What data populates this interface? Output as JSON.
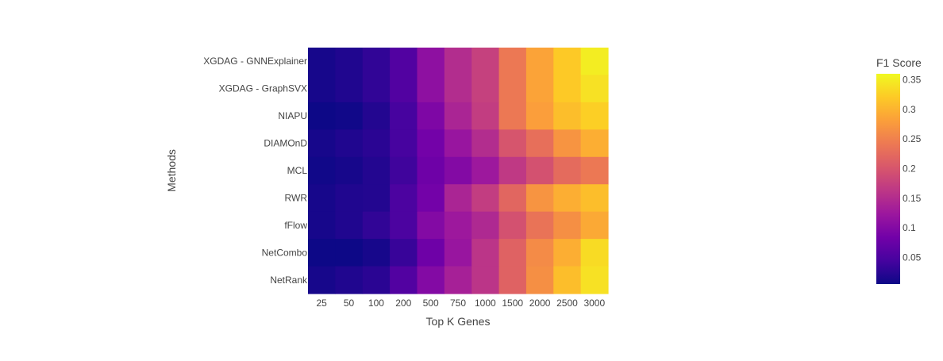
{
  "chart_data": {
    "type": "heatmap",
    "x_title": "Top K Genes",
    "y_title": "Methods",
    "colorbar_title": "F1 Score",
    "x_categories": [
      "25",
      "50",
      "100",
      "200",
      "500",
      "750",
      "1000",
      "1500",
      "2000",
      "2500",
      "3000"
    ],
    "y_categories": [
      "XGDAG - GNNExplainer",
      "XGDAG - GraphSVX",
      "NIAPU",
      "DIAMOnD",
      "MCL",
      "RWR",
      "fFlow",
      "NetCombo",
      "NetRank"
    ],
    "z": [
      [
        0.012,
        0.018,
        0.03,
        0.055,
        0.11,
        0.15,
        0.175,
        0.24,
        0.285,
        0.32,
        0.35
      ],
      [
        0.012,
        0.018,
        0.03,
        0.055,
        0.11,
        0.15,
        0.175,
        0.24,
        0.285,
        0.32,
        0.34
      ],
      [
        0.005,
        0.008,
        0.02,
        0.045,
        0.095,
        0.14,
        0.17,
        0.24,
        0.28,
        0.31,
        0.325
      ],
      [
        0.012,
        0.018,
        0.025,
        0.045,
        0.085,
        0.12,
        0.15,
        0.2,
        0.23,
        0.27,
        0.295
      ],
      [
        0.008,
        0.012,
        0.02,
        0.04,
        0.08,
        0.1,
        0.125,
        0.165,
        0.195,
        0.225,
        0.24
      ],
      [
        0.012,
        0.018,
        0.02,
        0.05,
        0.085,
        0.14,
        0.17,
        0.22,
        0.27,
        0.295,
        0.31
      ],
      [
        0.012,
        0.018,
        0.03,
        0.05,
        0.1,
        0.125,
        0.145,
        0.195,
        0.235,
        0.265,
        0.29
      ],
      [
        0.005,
        0.005,
        0.012,
        0.035,
        0.08,
        0.12,
        0.16,
        0.215,
        0.26,
        0.295,
        0.335
      ],
      [
        0.012,
        0.018,
        0.025,
        0.055,
        0.1,
        0.135,
        0.16,
        0.215,
        0.265,
        0.31,
        0.34
      ]
    ],
    "colorbar_ticks": [
      "0.05",
      "0.1",
      "0.15",
      "0.2",
      "0.25",
      "0.3",
      "0.35"
    ],
    "colorbar_tick_values": [
      0.05,
      0.1,
      0.15,
      0.2,
      0.25,
      0.3,
      0.35
    ],
    "z_range": [
      0.005,
      0.36
    ],
    "colorscale": [
      "#0d0887",
      "#46039f",
      "#7201a8",
      "#9c179e",
      "#bd3786",
      "#d8576b",
      "#ed7953",
      "#fb9f3a",
      "#fdca26",
      "#f0f921"
    ],
    "text_color": "#444444"
  }
}
